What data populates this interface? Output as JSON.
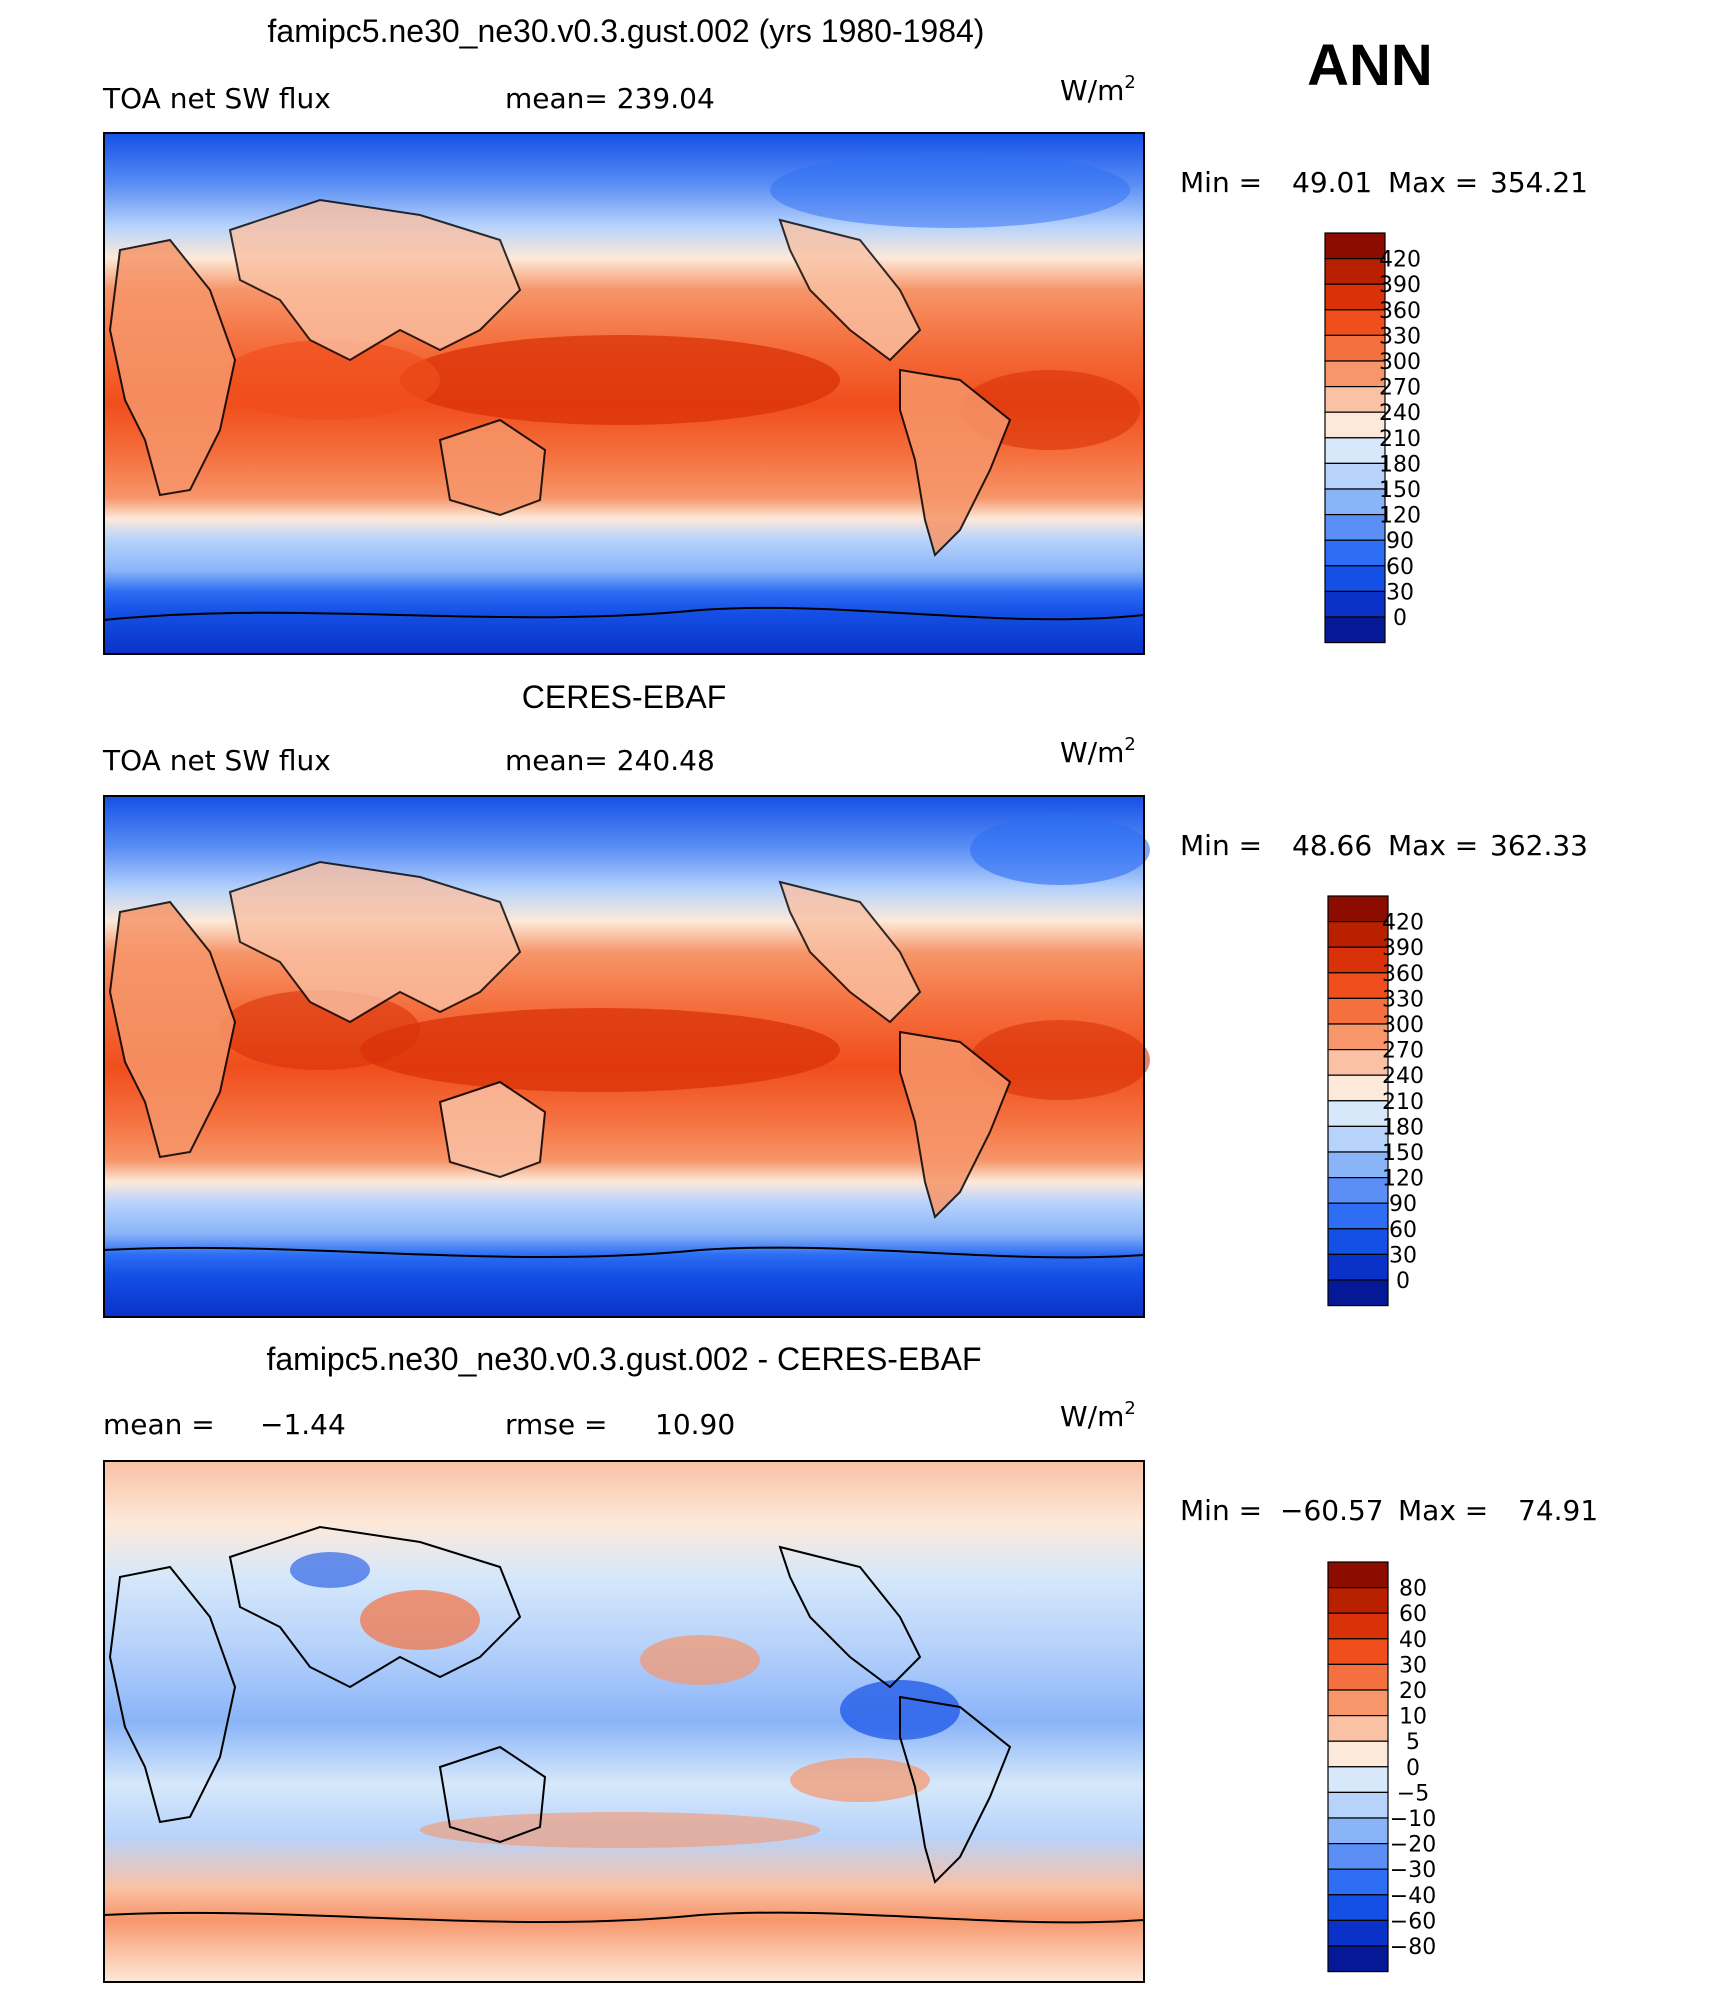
{
  "season": "ANN",
  "units_base": "W/m",
  "units_exp": "2",
  "panels": [
    {
      "id": "model",
      "title": "famipc5.ne30_ne30.v0.3.gust.002 (yrs 1980-1984)",
      "left_label": "TOA net SW flux",
      "mid_label": "mean=",
      "mid_value": "239.04",
      "minmax": {
        "min_label": "Min =",
        "min": "49.01",
        "max_label": "Max =",
        "max": "354.21"
      },
      "colorbar": {
        "levels": [
          "420",
          "390",
          "360",
          "330",
          "300",
          "270",
          "240",
          "210",
          "180",
          "150",
          "120",
          "90",
          "60",
          "30",
          "0"
        ],
        "colors": [
          "#8c0d00",
          "#b82000",
          "#d93208",
          "#f04e1c",
          "#f5703f",
          "#f6966a",
          "#fac1a4",
          "#fde9d9",
          "#d6e8fa",
          "#b8d3fb",
          "#8ab4f8",
          "#5b8ff5",
          "#2d6ef4",
          "#1450e6",
          "#0a32c8",
          "#051996"
        ]
      }
    },
    {
      "id": "obs",
      "title": "CERES-EBAF",
      "left_label": "TOA net SW flux",
      "mid_label": "mean=",
      "mid_value": "240.48",
      "minmax": {
        "min_label": "Min =",
        "min": "48.66",
        "max_label": "Max =",
        "max": "362.33"
      },
      "colorbar": {
        "levels": [
          "420",
          "390",
          "360",
          "330",
          "300",
          "270",
          "240",
          "210",
          "180",
          "150",
          "120",
          "90",
          "60",
          "30",
          "0"
        ],
        "colors": [
          "#8c0d00",
          "#b82000",
          "#d93208",
          "#f04e1c",
          "#f5703f",
          "#f6966a",
          "#fac1a4",
          "#fde9d9",
          "#d6e8fa",
          "#b8d3fb",
          "#8ab4f8",
          "#5b8ff5",
          "#2d6ef4",
          "#1450e6",
          "#0a32c8",
          "#051996"
        ]
      }
    },
    {
      "id": "diff",
      "title": "famipc5.ne30_ne30.v0.3.gust.002 - CERES-EBAF",
      "left_label": "mean =",
      "left_value": "−1.44",
      "mid_label": "rmse =",
      "mid_value": "10.90",
      "minmax": {
        "min_label": "Min =",
        "min": "−60.57",
        "max_label": "Max =",
        "max": "74.91"
      },
      "colorbar": {
        "levels": [
          "80",
          "60",
          "40",
          "30",
          "20",
          "10",
          "5",
          "0",
          "−5",
          "−10",
          "−20",
          "−30",
          "−40",
          "−60",
          "−80"
        ],
        "colors": [
          "#8c0d00",
          "#b82000",
          "#d93208",
          "#f04e1c",
          "#f5703f",
          "#f6966a",
          "#fac1a4",
          "#fde9d9",
          "#d6e8fa",
          "#b8d3fb",
          "#8ab4f8",
          "#5b8ff5",
          "#2d6ef4",
          "#1450e6",
          "#0a32c8",
          "#051996"
        ]
      }
    }
  ],
  "chart_data": [
    {
      "type": "heatmap",
      "title": "famipc5.ne30_ne30.v0.3.gust.002 (yrs 1980-1984)",
      "variable": "TOA net SW flux",
      "mean": 239.04,
      "min": 49.01,
      "max": 354.21,
      "colorbar_levels": [
        0,
        30,
        60,
        90,
        120,
        150,
        180,
        210,
        240,
        270,
        300,
        330,
        360,
        390,
        420
      ]
    },
    {
      "type": "heatmap",
      "title": "CERES-EBAF",
      "variable": "TOA net SW flux",
      "mean": 240.48,
      "min": 48.66,
      "max": 362.33,
      "colorbar_levels": [
        0,
        30,
        60,
        90,
        120,
        150,
        180,
        210,
        240,
        270,
        300,
        330,
        360,
        390,
        420
      ]
    },
    {
      "type": "heatmap",
      "title": "famipc5.ne30_ne30.v0.3.gust.002 - CERES-EBAF",
      "mean": -1.44,
      "rmse": 10.9,
      "min": -60.57,
      "max": 74.91,
      "colorbar_levels": [
        -80,
        -60,
        -40,
        -30,
        -20,
        -10,
        -5,
        0,
        5,
        10,
        20,
        30,
        40,
        60,
        80
      ]
    }
  ]
}
